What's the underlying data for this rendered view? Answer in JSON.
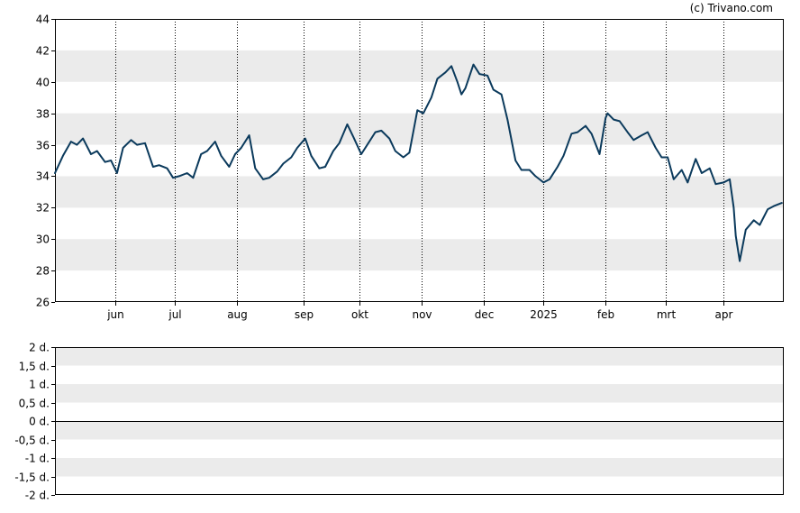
{
  "copyright": "(c) Trivano.com",
  "colors": {
    "line": "#0b3a5c",
    "band": "#ebebeb",
    "axis": "#000000",
    "grid": "#000000",
    "background": "#ffffff"
  },
  "chart_data": [
    {
      "type": "line",
      "title": "",
      "xlabel": "",
      "ylabel": "",
      "ylim": [
        26,
        44
      ],
      "yticks": [
        26,
        28,
        30,
        32,
        34,
        36,
        38,
        40,
        42,
        44
      ],
      "xlim": [
        "2024-05-02",
        "2025-05-01"
      ],
      "xtick_labels": [
        {
          "date": "2024-06-01",
          "label": "jun"
        },
        {
          "date": "2024-07-01",
          "label": "jul"
        },
        {
          "date": "2024-08-01",
          "label": "aug"
        },
        {
          "date": "2024-09-03",
          "label": "sep"
        },
        {
          "date": "2024-10-01",
          "label": "okt"
        },
        {
          "date": "2024-11-01",
          "label": "nov"
        },
        {
          "date": "2024-12-02",
          "label": "dec"
        },
        {
          "date": "2025-01-01",
          "label": "2025"
        },
        {
          "date": "2025-02-01",
          "label": "feb"
        },
        {
          "date": "2025-03-03",
          "label": "mrt"
        },
        {
          "date": "2025-04-01",
          "label": "apr"
        }
      ],
      "grid": "alternating horizontal bands, dotted vertical lines at month ticks",
      "series": [
        {
          "x": [
            "2024-05-02",
            "2024-05-06",
            "2024-05-10",
            "2024-05-13",
            "2024-05-16",
            "2024-05-20",
            "2024-05-23",
            "2024-05-27",
            "2024-05-30",
            "2024-06-02",
            "2024-06-05",
            "2024-06-09",
            "2024-06-12",
            "2024-06-16",
            "2024-06-20",
            "2024-06-23",
            "2024-06-27",
            "2024-06-30",
            "2024-07-03",
            "2024-07-07",
            "2024-07-10",
            "2024-07-14",
            "2024-07-17",
            "2024-07-21",
            "2024-07-24",
            "2024-07-28",
            "2024-07-31",
            "2024-08-03",
            "2024-08-07",
            "2024-08-10",
            "2024-08-14",
            "2024-08-17",
            "2024-08-21",
            "2024-08-24",
            "2024-08-28",
            "2024-08-31",
            "2024-09-04",
            "2024-09-07",
            "2024-09-11",
            "2024-09-14",
            "2024-09-18",
            "2024-09-21",
            "2024-09-25",
            "2024-09-28",
            "2024-10-02",
            "2024-10-05",
            "2024-10-09",
            "2024-10-12",
            "2024-10-16",
            "2024-10-19",
            "2024-10-23",
            "2024-10-26",
            "2024-10-30",
            "2024-11-02",
            "2024-11-06",
            "2024-11-09",
            "2024-11-13",
            "2024-11-16",
            "2024-11-19",
            "2024-11-21",
            "2024-11-23",
            "2024-11-27",
            "2024-11-30",
            "2024-12-04",
            "2024-12-07",
            "2024-12-11",
            "2024-12-14",
            "2024-12-18",
            "2024-12-21",
            "2024-12-25",
            "2024-12-28",
            "2025-01-01",
            "2025-01-04",
            "2025-01-08",
            "2025-01-11",
            "2025-01-15",
            "2025-01-18",
            "2025-01-22",
            "2025-01-25",
            "2025-01-29",
            "2025-02-01",
            "2025-02-02",
            "2025-02-05",
            "2025-02-08",
            "2025-02-12",
            "2025-02-15",
            "2025-02-19",
            "2025-02-22",
            "2025-02-26",
            "2025-03-01",
            "2025-03-04",
            "2025-03-07",
            "2025-03-11",
            "2025-03-14",
            "2025-03-18",
            "2025-03-21",
            "2025-03-25",
            "2025-03-28",
            "2025-04-01",
            "2025-04-04",
            "2025-04-06",
            "2025-04-07",
            "2025-04-09",
            "2025-04-12",
            "2025-04-16",
            "2025-04-19",
            "2025-04-23",
            "2025-04-26",
            "2025-04-30"
          ],
          "values": [
            34.2,
            35.3,
            36.2,
            36.0,
            36.4,
            35.4,
            35.6,
            34.9,
            35.0,
            34.2,
            35.8,
            36.3,
            36.0,
            36.1,
            34.6,
            34.7,
            34.5,
            33.9,
            34.0,
            34.2,
            33.9,
            35.4,
            35.6,
            36.2,
            35.3,
            34.6,
            35.4,
            35.8,
            36.6,
            34.5,
            33.8,
            33.9,
            34.3,
            34.8,
            35.2,
            35.8,
            36.4,
            35.3,
            34.5,
            34.6,
            35.6,
            36.1,
            37.3,
            36.5,
            35.4,
            36.0,
            36.8,
            36.9,
            36.4,
            35.6,
            35.2,
            35.5,
            38.2,
            38.0,
            39.0,
            40.2,
            40.6,
            41.0,
            40.0,
            39.2,
            39.6,
            41.1,
            40.5,
            40.4,
            39.5,
            39.2,
            37.6,
            35.0,
            34.4,
            34.4,
            34.0,
            33.6,
            33.8,
            34.6,
            35.3,
            36.7,
            36.8,
            37.2,
            36.7,
            35.4,
            37.7,
            38.0,
            37.6,
            37.5,
            36.8,
            36.3,
            36.6,
            36.8,
            35.8,
            35.2,
            35.2,
            33.8,
            34.4,
            33.6,
            35.1,
            34.2,
            34.5,
            33.5,
            33.6,
            33.8,
            32.0,
            30.2,
            28.6,
            30.6,
            31.2,
            30.9,
            31.9,
            32.1,
            32.3
          ]
        }
      ]
    },
    {
      "type": "bar",
      "title": "",
      "xlabel": "",
      "ylabel": "",
      "ylim": [
        -2,
        2
      ],
      "ytick_labels": [
        "2 d.",
        "1,5 d.",
        "1 d.",
        "0,5 d.",
        "0 d.",
        "-0,5 d.",
        "-1 d.",
        "-1,5 d.",
        "-2 d."
      ],
      "series": []
    }
  ]
}
